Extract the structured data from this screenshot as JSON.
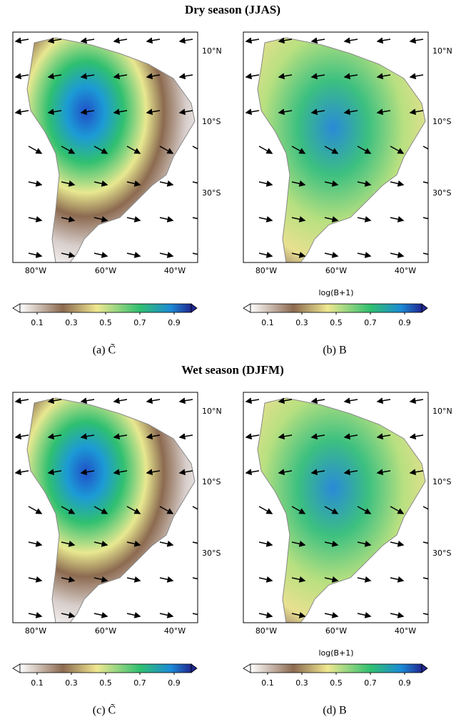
{
  "sections": [
    {
      "title": "Dry season (JJAS)",
      "panels": [
        {
          "caption": "(a) C̃",
          "lat_labels": [
            "10°N",
            "10°S",
            "30°S"
          ],
          "lon_labels": [
            "80°W",
            "60°W",
            "40°W"
          ],
          "colorbar_ticks": [
            0.1,
            0.3,
            0.5,
            0.7,
            0.9
          ]
        },
        {
          "caption": "(b) B",
          "xlabel": "log(B+1)",
          "lat_labels": [
            "10°N",
            "10°S",
            "30°S"
          ],
          "lon_labels": [
            "80°W",
            "60°W",
            "40°W"
          ],
          "colorbar_ticks": [
            0.1,
            0.3,
            0.5,
            0.7,
            0.9
          ]
        }
      ]
    },
    {
      "title": "Wet season (DJFM)",
      "panels": [
        {
          "caption": "(c) C̃",
          "lat_labels": [
            "10°N",
            "10°S",
            "30°S"
          ],
          "lon_labels": [
            "80°W",
            "60°W",
            "40°W"
          ],
          "colorbar_ticks": [
            0.1,
            0.3,
            0.5,
            0.7,
            0.9
          ]
        },
        {
          "caption": "(d) B",
          "xlabel": "log(B+1)",
          "lat_labels": [
            "10°N",
            "10°S",
            "30°S"
          ],
          "lon_labels": [
            "80°W",
            "60°W",
            "40°W"
          ],
          "colorbar_ticks": [
            0.1,
            0.3,
            0.5,
            0.7,
            0.9
          ]
        }
      ]
    }
  ]
}
